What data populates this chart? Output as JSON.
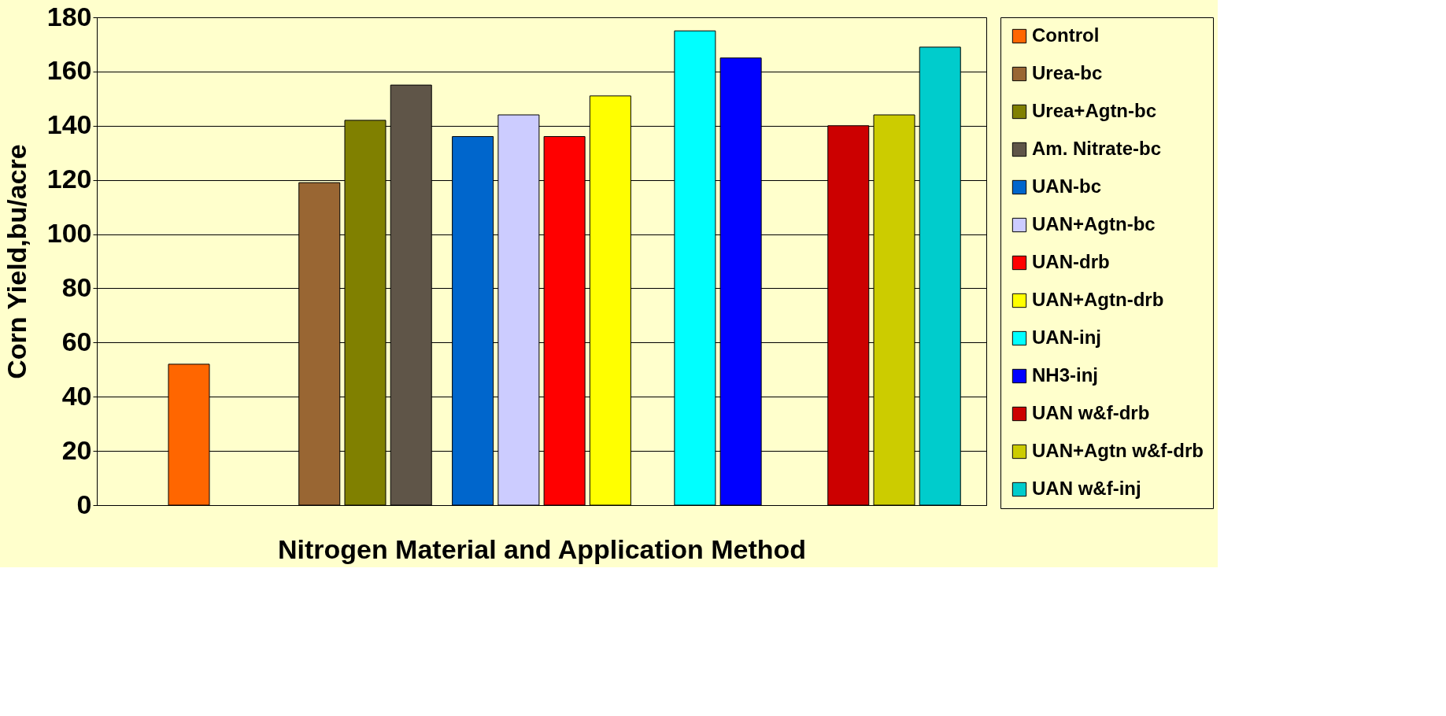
{
  "chart_data": {
    "type": "bar",
    "xlabel": "Nitrogen Material and Application Method",
    "ylabel": "Corn Yield,bu/acre",
    "categories": [
      null,
      null,
      null,
      null,
      null
    ],
    "series": [
      {
        "name": "Control",
        "color": "#ff6600",
        "values": [
          52,
          null,
          null,
          null,
          null
        ]
      },
      {
        "name": "Urea-bc",
        "color": "#996633",
        "values": [
          null,
          119,
          null,
          null,
          null
        ]
      },
      {
        "name": "Urea+Agtn-bc",
        "color": "#808000",
        "values": [
          null,
          142,
          null,
          null,
          null
        ]
      },
      {
        "name": "Am. Nitrate-bc",
        "color": "#5f5548",
        "values": [
          null,
          155,
          null,
          null,
          null
        ]
      },
      {
        "name": "UAN-bc",
        "color": "#0066cc",
        "values": [
          null,
          null,
          136,
          null,
          null
        ]
      },
      {
        "name": "UAN+Agtn-bc",
        "color": "#ccccff",
        "values": [
          null,
          null,
          144,
          null,
          null
        ]
      },
      {
        "name": "UAN-drb",
        "color": "#ff0000",
        "values": [
          null,
          null,
          136,
          null,
          null
        ]
      },
      {
        "name": "UAN+Agtn-drb",
        "color": "#ffff00",
        "values": [
          null,
          null,
          151,
          null,
          null
        ]
      },
      {
        "name": "UAN-inj",
        "color": "#00ffff",
        "values": [
          null,
          null,
          null,
          175,
          null
        ]
      },
      {
        "name": "NH3-inj",
        "color": "#0000ff",
        "values": [
          null,
          null,
          null,
          165,
          null
        ]
      },
      {
        "name": "UAN w&f-drb",
        "color": "#cc0000",
        "values": [
          null,
          null,
          null,
          null,
          140
        ]
      },
      {
        "name": "UAN+Agtn w&f-drb",
        "color": "#cccc00",
        "values": [
          null,
          null,
          null,
          null,
          144
        ]
      },
      {
        "name": "UAN w&f-inj",
        "color": "#00cccc",
        "values": [
          null,
          null,
          null,
          null,
          169
        ]
      }
    ],
    "ylim": [
      0,
      180
    ],
    "yticks": [
      0,
      20,
      40,
      60,
      80,
      100,
      120,
      140,
      160,
      180
    ],
    "grid": "y",
    "legend": "right"
  }
}
